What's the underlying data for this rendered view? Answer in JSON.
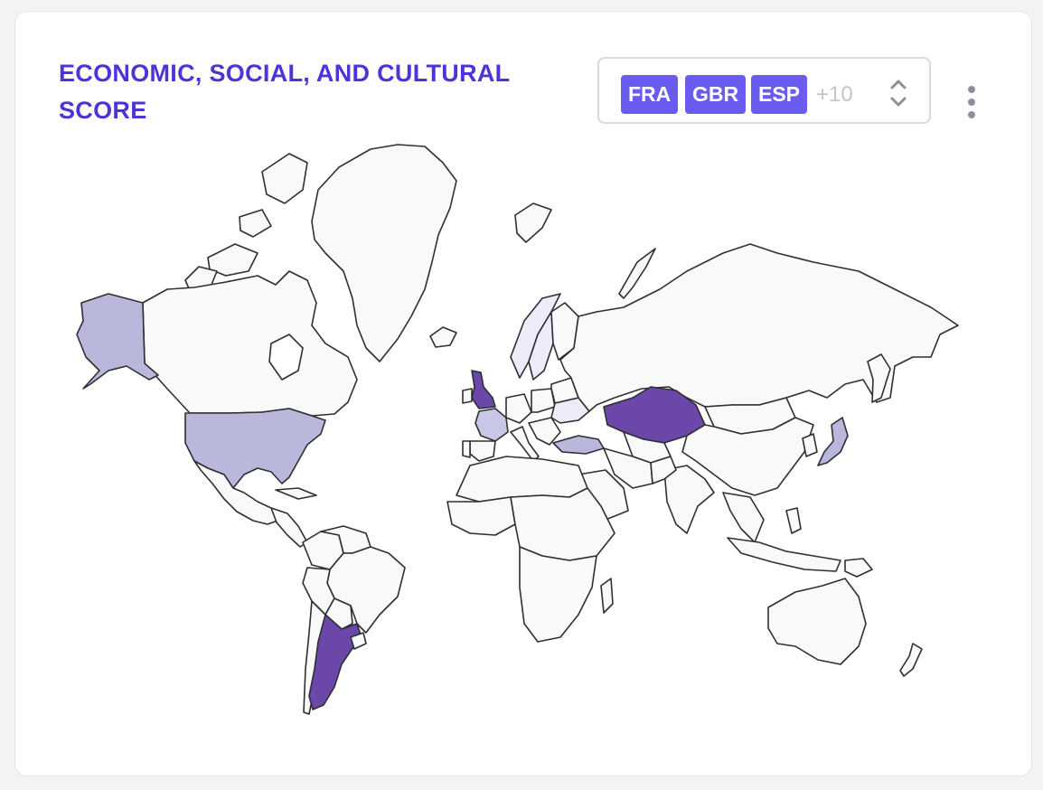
{
  "card": {
    "title": "ECONOMIC, SOCIAL, AND CULTURAL SCORE"
  },
  "country_selector": {
    "chips": [
      "FRA",
      "GBR",
      "ESP"
    ],
    "more_label": "+10"
  },
  "icons": {
    "selector_toggle": "chevron-up-down-icon",
    "menu": "vertical-dots-icon"
  },
  "colors": {
    "title": "#4b35d8",
    "chip_bg": "#6a5cf0",
    "land_default": "#f9f9fa",
    "choropleth_lightest": "#ecebf8",
    "choropleth_light": "#c9c7e6",
    "choropleth_mid": "#b9b8dc",
    "choropleth_dark": "#6a47a8"
  },
  "map_data": {
    "type": "choropleth",
    "highlighted_countries": [
      {
        "name": "United Kingdom",
        "shade": "dark"
      },
      {
        "name": "Kazakhstan",
        "shade": "dark"
      },
      {
        "name": "Argentina",
        "shade": "dark"
      },
      {
        "name": "United States",
        "shade": "mid"
      },
      {
        "name": "Alaska",
        "shade": "mid"
      },
      {
        "name": "Turkey",
        "shade": "mid"
      },
      {
        "name": "Japan",
        "shade": "mid"
      },
      {
        "name": "France",
        "shade": "light"
      },
      {
        "name": "Norway",
        "shade": "lightest"
      },
      {
        "name": "Sweden",
        "shade": "lightest"
      },
      {
        "name": "Ukraine",
        "shade": "lightest"
      }
    ]
  }
}
